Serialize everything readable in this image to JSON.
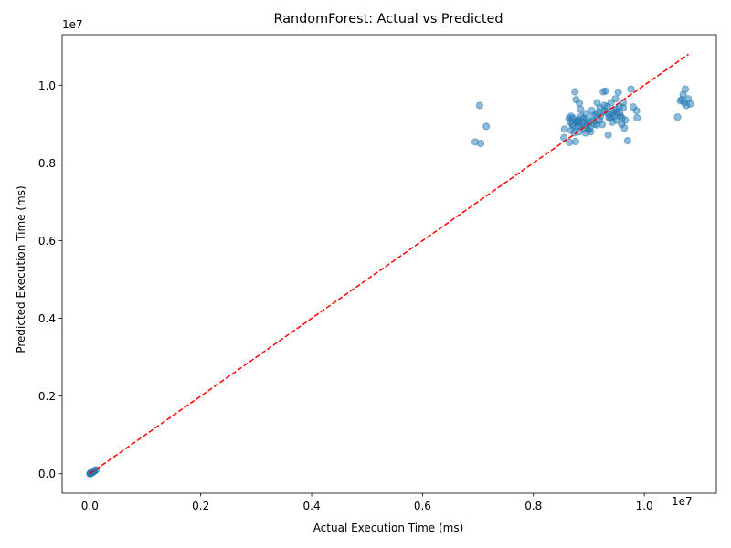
{
  "chart_data": {
    "type": "scatter",
    "title": "RandomForest: Actual vs Predicted",
    "xlabel": "Actual Execution Time (ms)",
    "ylabel": "Predicted Execution Time (ms)",
    "x_offset_label": "1e7",
    "y_offset_label": "1e7",
    "xlim": [
      -500000,
      11300000
    ],
    "ylim": [
      -500000,
      11300000
    ],
    "x_ticks": [
      0,
      2000000,
      4000000,
      6000000,
      8000000,
      10000000
    ],
    "x_tick_labels": [
      "0.0",
      "0.2",
      "0.4",
      "0.6",
      "0.8",
      "1.0"
    ],
    "y_ticks": [
      0,
      2000000,
      4000000,
      6000000,
      8000000,
      10000000
    ],
    "y_tick_labels": [
      "0.0",
      "0.2",
      "0.4",
      "0.6",
      "0.8",
      "1.0"
    ],
    "grid": false,
    "point_color": "#1f77b4",
    "point_alpha": 0.5,
    "reference_line": {
      "style": "dashed",
      "color": "#ff0000",
      "x": [
        0,
        10800000
      ],
      "y": [
        0,
        10800000
      ]
    },
    "series": [
      {
        "points": [
          [
            0,
            0
          ],
          [
            10000,
            8000
          ],
          [
            20000,
            15000
          ],
          [
            30000,
            25000
          ],
          [
            40000,
            30000
          ],
          [
            50000,
            45000
          ],
          [
            60000,
            55000
          ],
          [
            75000,
            70000
          ],
          [
            90000,
            80000
          ],
          [
            110000,
            100000
          ],
          [
            5000,
            12000
          ],
          [
            15000,
            5000
          ],
          [
            25000,
            40000
          ],
          [
            70000,
            60000
          ],
          [
            6950000,
            8540000
          ],
          [
            7050000,
            8500000
          ],
          [
            7030000,
            9480000
          ],
          [
            7150000,
            8940000
          ],
          [
            8550000,
            8650000
          ],
          [
            8560000,
            8870000
          ],
          [
            8650000,
            8530000
          ],
          [
            8640000,
            9150000
          ],
          [
            8660000,
            9050000
          ],
          [
            8680000,
            8840000
          ],
          [
            8700000,
            9000000
          ],
          [
            8720000,
            9150000
          ],
          [
            8740000,
            8780000
          ],
          [
            8750000,
            9830000
          ],
          [
            8760000,
            8550000
          ],
          [
            8770000,
            9630000
          ],
          [
            8780000,
            9080000
          ],
          [
            8800000,
            8930000
          ],
          [
            8810000,
            9100000
          ],
          [
            8820000,
            8800000
          ],
          [
            8830000,
            9540000
          ],
          [
            8850000,
            9380000
          ],
          [
            8860000,
            9200000
          ],
          [
            8880000,
            9000000
          ],
          [
            8900000,
            9150000
          ],
          [
            8920000,
            8880000
          ],
          [
            8940000,
            8770000
          ],
          [
            8950000,
            9270000
          ],
          [
            8970000,
            8960000
          ],
          [
            8990000,
            8850000
          ],
          [
            9000000,
            9050000
          ],
          [
            9030000,
            8800000
          ],
          [
            9050000,
            9350000
          ],
          [
            9080000,
            9200000
          ],
          [
            9100000,
            9000000
          ],
          [
            9130000,
            9250000
          ],
          [
            9150000,
            9550000
          ],
          [
            9170000,
            9300000
          ],
          [
            9190000,
            9100000
          ],
          [
            9210000,
            9200000
          ],
          [
            9240000,
            8990000
          ],
          [
            9260000,
            9830000
          ],
          [
            9280000,
            9480000
          ],
          [
            9300000,
            9850000
          ],
          [
            9310000,
            9300000
          ],
          [
            9330000,
            9450000
          ],
          [
            9350000,
            8720000
          ],
          [
            9370000,
            9250000
          ],
          [
            9390000,
            9150000
          ],
          [
            9400000,
            9550000
          ],
          [
            9420000,
            9050000
          ],
          [
            9440000,
            9350000
          ],
          [
            9460000,
            9200000
          ],
          [
            9480000,
            9650000
          ],
          [
            9500000,
            9100000
          ],
          [
            9510000,
            9300000
          ],
          [
            9530000,
            9820000
          ],
          [
            9550000,
            9450000
          ],
          [
            9570000,
            9200000
          ],
          [
            9590000,
            9000000
          ],
          [
            9600000,
            9150000
          ],
          [
            9620000,
            9550000
          ],
          [
            9640000,
            8900000
          ],
          [
            9660000,
            9100000
          ],
          [
            9700000,
            8570000
          ],
          [
            9760000,
            9900000
          ],
          [
            9800000,
            9440000
          ],
          [
            9860000,
            9340000
          ],
          [
            9870000,
            9160000
          ],
          [
            10600000,
            9180000
          ],
          [
            10650000,
            9600000
          ],
          [
            10680000,
            9630000
          ],
          [
            10700000,
            9760000
          ],
          [
            10720000,
            9550000
          ],
          [
            10740000,
            9900000
          ],
          [
            10760000,
            9480000
          ],
          [
            10790000,
            9650000
          ],
          [
            10830000,
            9520000
          ],
          [
            8680000,
            9200000
          ],
          [
            8720000,
            8950000
          ],
          [
            8780000,
            9060000
          ],
          [
            8830000,
            8970000
          ],
          [
            8900000,
            9060000
          ],
          [
            8960000,
            9120000
          ],
          [
            9020000,
            8900000
          ],
          [
            9080000,
            9080000
          ],
          [
            9140000,
            8980000
          ],
          [
            9200000,
            9420000
          ],
          [
            9280000,
            9340000
          ],
          [
            9360000,
            9160000
          ],
          [
            9430000,
            9260000
          ],
          [
            9490000,
            9380000
          ],
          [
            9560000,
            9280000
          ],
          [
            9620000,
            9420000
          ]
        ]
      }
    ]
  }
}
